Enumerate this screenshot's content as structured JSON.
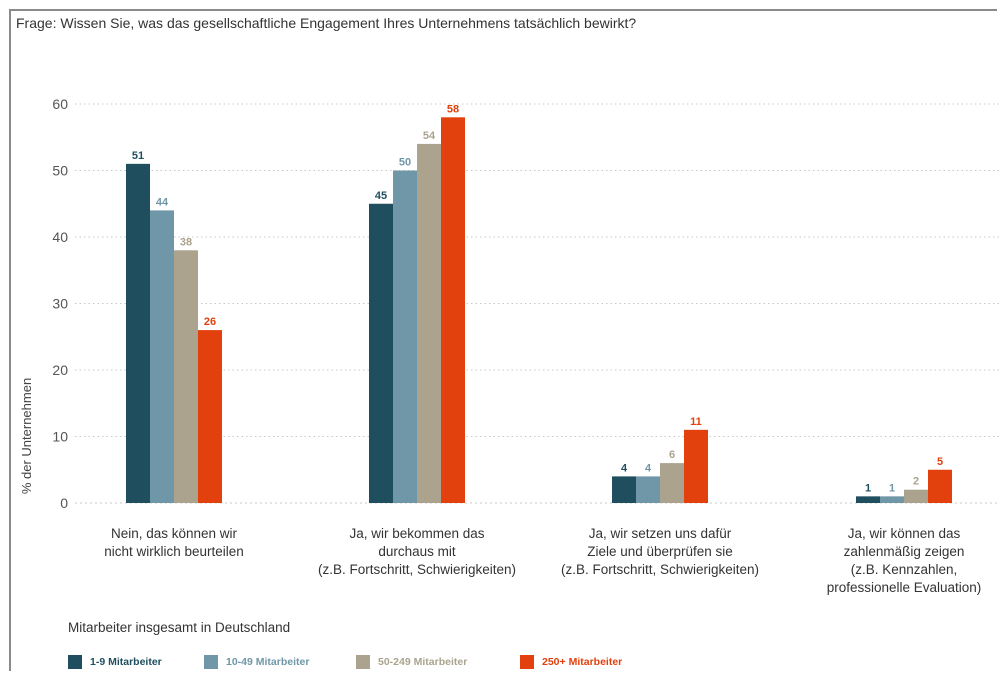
{
  "question": "Frage: Wissen Sie, was das gesellschaftliche Engagement Ihres Unternehmens tatsächlich bewirkt?",
  "legend_title": "Mitarbeiter insgesamt in Deutschland",
  "chart_data": {
    "type": "bar",
    "ylabel": "% der Unternehmen",
    "ylim": [
      0,
      60
    ],
    "yticks": [
      0,
      10,
      20,
      30,
      40,
      50,
      60
    ],
    "grid": "horizontal-dotted",
    "legend_placement": "bottom",
    "categories": [
      [
        "Nein, das können wir",
        "nicht wirklich beurteilen"
      ],
      [
        "Ja, wir bekommen das",
        "durchaus mit",
        "(z.B. Fortschritt, Schwierigkeiten)"
      ],
      [
        "Ja, wir setzen uns dafür",
        "Ziele und überprüfen sie",
        "(z.B. Fortschritt, Schwierigkeiten)"
      ],
      [
        "Ja, wir können das",
        "zahlenmäßig zeigen",
        "(z.B. Kennzahlen,",
        "professionelle Evaluation)"
      ]
    ],
    "series": [
      {
        "name": "1-9 Mitarbeiter",
        "color": "#1f4e5f",
        "values": [
          51,
          45,
          4,
          1
        ]
      },
      {
        "name": "10-49 Mitarbeiter",
        "color": "#6f97a8",
        "values": [
          44,
          50,
          4,
          1
        ]
      },
      {
        "name": "50-249 Mitarbeiter",
        "color": "#aca38f",
        "values": [
          38,
          54,
          6,
          2
        ]
      },
      {
        "name": "250+ Mitarbeiter",
        "color": "#e2400c",
        "values": [
          26,
          58,
          11,
          5
        ]
      }
    ]
  }
}
